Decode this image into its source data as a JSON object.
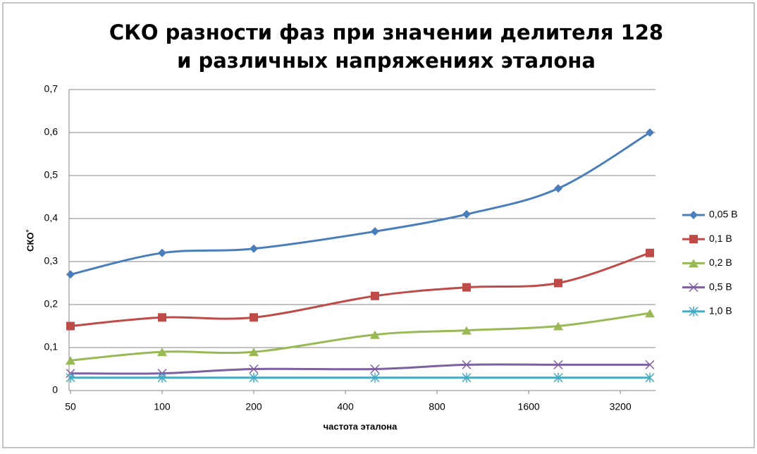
{
  "chart_data": {
    "type": "line",
    "smooth": true,
    "log_x": true,
    "log_base": 2,
    "title": "СКО разности фаз при значении делителя 128",
    "subtitle": "и различных напряжениях эталона",
    "xlabel": "частота эталона",
    "ylabel": "СКО˚",
    "x": [
      50,
      100,
      200,
      500,
      1000,
      2000,
      4000
    ],
    "xlim": [
      50,
      4000
    ],
    "xticks": [
      50,
      100,
      200,
      400,
      800,
      1600,
      3200
    ],
    "ylim": [
      0,
      0.7
    ],
    "yticks": [
      0,
      {
        "value": 0.1,
        "label": "0,1"
      },
      {
        "value": 0.2,
        "label": "0,2"
      },
      {
        "value": 0.3,
        "label": "0,3"
      },
      {
        "value": 0.4,
        "label": "0,4"
      },
      {
        "value": 0.5,
        "label": "0,5"
      },
      {
        "value": 0.6,
        "label": "0,6"
      },
      {
        "value": 0.7,
        "label": "0,7"
      }
    ],
    "grid": true,
    "legend": "right",
    "series": [
      {
        "name": "0,05 В",
        "color": "#4a7ebb",
        "marker": "diamond",
        "values": [
          0.27,
          0.32,
          0.33,
          0.37,
          0.41,
          0.47,
          0.6
        ]
      },
      {
        "name": "0,1 В",
        "color": "#be4b48",
        "marker": "square",
        "values": [
          0.15,
          0.17,
          0.17,
          0.22,
          0.24,
          0.25,
          0.32
        ]
      },
      {
        "name": "0,2 В",
        "color": "#98b954",
        "marker": "triangle",
        "values": [
          0.07,
          0.09,
          0.09,
          0.13,
          0.14,
          0.15,
          0.18
        ]
      },
      {
        "name": "0,5 В",
        "color": "#7d60a0",
        "marker": "x",
        "values": [
          0.04,
          0.04,
          0.05,
          0.05,
          0.06,
          0.06,
          0.06
        ]
      },
      {
        "name": "1,0 В",
        "color": "#46aac5",
        "marker": "star",
        "values": [
          0.03,
          0.03,
          0.03,
          0.03,
          0.03,
          0.03,
          0.03
        ]
      }
    ]
  }
}
